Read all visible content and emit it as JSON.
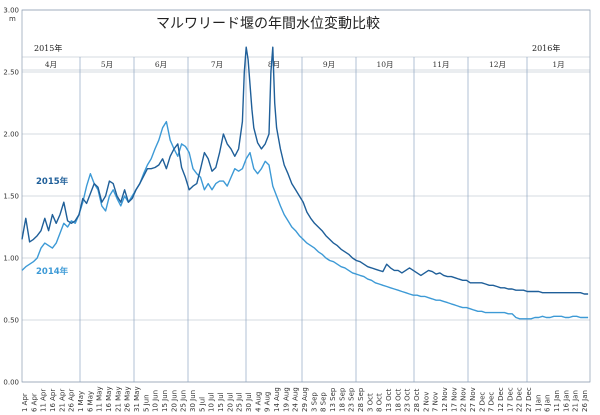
{
  "chart_data": {
    "type": "line",
    "title": "マルワリード堰の年間水位変動比較",
    "ylabel": "m",
    "ylim": [
      0,
      3.0
    ],
    "yticks": [
      "0.00",
      "0.50",
      "1.00",
      "1.50",
      "2.00",
      "2.50",
      "3.00"
    ],
    "grid": true,
    "year_labels": {
      "left": "2015年",
      "right": "2016年"
    },
    "months": [
      "4月",
      "5月",
      "6月",
      "7月",
      "8月",
      "9月",
      "10月",
      "11月",
      "12月",
      "1月"
    ],
    "x_ticks": [
      "1 Apr",
      "6 Apr",
      "11 Apr",
      "16 Apr",
      "21 Apr",
      "26 Apr",
      "1 May",
      "6 May",
      "11 May",
      "16 May",
      "21 May",
      "26 May",
      "31 May",
      "5 Jun",
      "10 Jun",
      "15 Jun",
      "20 Jun",
      "25 Jun",
      "30 Jun",
      "5 Jul",
      "10 Jul",
      "15 Jul",
      "20 Jul",
      "25 Jul",
      "30 Jul",
      "4 Aug",
      "9 Aug",
      "14 Aug",
      "19 Aug",
      "24 Aug",
      "29 Aug",
      "3 Sep",
      "8 Sep",
      "13 Sep",
      "18 Sep",
      "23 Sep",
      "28 Sep",
      "3 Oct",
      "8 Oct",
      "13 Oct",
      "18 Oct",
      "23 Oct",
      "28 Oct",
      "2 Nov",
      "7 Nov",
      "12 Nov",
      "17 Nov",
      "22 Nov",
      "27 Nov",
      "2 Dec",
      "7 Dec",
      "12 Dec",
      "17 Dec",
      "22 Dec",
      "27 Dec",
      "1 Jan",
      "6 Jan",
      "11 Jan",
      "16 Jan",
      "21 Jan",
      "26 Jan"
    ],
    "series": [
      {
        "name": "2015年",
        "color": "#1f5f99",
        "points": [
          [
            0,
            1.15
          ],
          [
            2,
            1.32
          ],
          [
            4,
            1.13
          ],
          [
            6,
            1.15
          ],
          [
            8,
            1.18
          ],
          [
            10,
            1.22
          ],
          [
            12,
            1.32
          ],
          [
            14,
            1.22
          ],
          [
            16,
            1.35
          ],
          [
            18,
            1.28
          ],
          [
            20,
            1.35
          ],
          [
            22,
            1.45
          ],
          [
            24,
            1.3
          ],
          [
            26,
            1.28
          ],
          [
            28,
            1.3
          ],
          [
            30,
            1.35
          ],
          [
            32,
            1.48
          ],
          [
            34,
            1.44
          ],
          [
            36,
            1.52
          ],
          [
            38,
            1.6
          ],
          [
            40,
            1.57
          ],
          [
            42,
            1.45
          ],
          [
            44,
            1.5
          ],
          [
            46,
            1.62
          ],
          [
            48,
            1.6
          ],
          [
            50,
            1.5
          ],
          [
            52,
            1.45
          ],
          [
            54,
            1.55
          ],
          [
            56,
            1.45
          ],
          [
            58,
            1.48
          ],
          [
            60,
            1.55
          ],
          [
            62,
            1.6
          ],
          [
            64,
            1.66
          ],
          [
            66,
            1.72
          ],
          [
            68,
            1.72
          ],
          [
            70,
            1.73
          ],
          [
            72,
            1.75
          ],
          [
            74,
            1.8
          ],
          [
            76,
            1.72
          ],
          [
            78,
            1.82
          ],
          [
            80,
            1.88
          ],
          [
            82,
            1.92
          ],
          [
            84,
            1.73
          ],
          [
            86,
            1.65
          ],
          [
            88,
            1.55
          ],
          [
            90,
            1.58
          ],
          [
            92,
            1.6
          ],
          [
            94,
            1.72
          ],
          [
            96,
            1.85
          ],
          [
            98,
            1.8
          ],
          [
            100,
            1.7
          ],
          [
            102,
            1.73
          ],
          [
            104,
            1.85
          ],
          [
            106,
            2.0
          ],
          [
            108,
            1.92
          ],
          [
            110,
            1.88
          ],
          [
            112,
            1.82
          ],
          [
            114,
            1.88
          ],
          [
            116,
            2.1
          ],
          [
            117,
            2.5
          ],
          [
            118,
            2.7
          ],
          [
            119,
            2.6
          ],
          [
            120,
            2.4
          ],
          [
            121,
            2.2
          ],
          [
            122,
            2.05
          ],
          [
            124,
            1.93
          ],
          [
            126,
            1.88
          ],
          [
            128,
            1.92
          ],
          [
            130,
            2.0
          ],
          [
            131,
            2.5
          ],
          [
            132,
            2.7
          ],
          [
            133,
            2.25
          ],
          [
            134,
            2.05
          ],
          [
            136,
            1.88
          ],
          [
            138,
            1.75
          ],
          [
            140,
            1.68
          ],
          [
            142,
            1.6
          ],
          [
            144,
            1.55
          ],
          [
            146,
            1.5
          ],
          [
            148,
            1.45
          ],
          [
            150,
            1.37
          ],
          [
            152,
            1.32
          ],
          [
            154,
            1.28
          ],
          [
            156,
            1.25
          ],
          [
            158,
            1.22
          ],
          [
            160,
            1.18
          ],
          [
            162,
            1.15
          ],
          [
            164,
            1.12
          ],
          [
            166,
            1.1
          ],
          [
            168,
            1.07
          ],
          [
            170,
            1.05
          ],
          [
            172,
            1.03
          ],
          [
            174,
            1.0
          ],
          [
            176,
            0.98
          ],
          [
            178,
            0.97
          ],
          [
            180,
            0.95
          ],
          [
            182,
            0.93
          ],
          [
            184,
            0.92
          ],
          [
            186,
            0.91
          ],
          [
            188,
            0.9
          ],
          [
            190,
            0.89
          ],
          [
            192,
            0.95
          ],
          [
            194,
            0.92
          ],
          [
            196,
            0.9
          ],
          [
            198,
            0.9
          ],
          [
            200,
            0.88
          ],
          [
            202,
            0.9
          ],
          [
            204,
            0.92
          ],
          [
            206,
            0.9
          ],
          [
            208,
            0.88
          ],
          [
            210,
            0.86
          ],
          [
            212,
            0.88
          ],
          [
            214,
            0.9
          ],
          [
            216,
            0.89
          ],
          [
            218,
            0.87
          ],
          [
            220,
            0.88
          ],
          [
            222,
            0.86
          ],
          [
            224,
            0.85
          ],
          [
            226,
            0.85
          ],
          [
            228,
            0.84
          ],
          [
            230,
            0.83
          ],
          [
            232,
            0.82
          ],
          [
            234,
            0.82
          ],
          [
            236,
            0.8
          ],
          [
            238,
            0.8
          ],
          [
            240,
            0.8
          ],
          [
            242,
            0.8
          ],
          [
            244,
            0.79
          ],
          [
            246,
            0.78
          ],
          [
            248,
            0.78
          ],
          [
            250,
            0.77
          ],
          [
            252,
            0.76
          ],
          [
            254,
            0.76
          ],
          [
            256,
            0.75
          ],
          [
            258,
            0.75
          ],
          [
            260,
            0.74
          ],
          [
            262,
            0.74
          ],
          [
            264,
            0.74
          ],
          [
            266,
            0.73
          ],
          [
            268,
            0.73
          ],
          [
            270,
            0.73
          ],
          [
            272,
            0.73
          ],
          [
            274,
            0.72
          ],
          [
            276,
            0.72
          ],
          [
            278,
            0.72
          ],
          [
            280,
            0.72
          ],
          [
            282,
            0.72
          ],
          [
            284,
            0.72
          ],
          [
            286,
            0.72
          ],
          [
            288,
            0.72
          ],
          [
            290,
            0.72
          ],
          [
            292,
            0.72
          ],
          [
            294,
            0.72
          ],
          [
            296,
            0.71
          ],
          [
            298,
            0.71
          ]
        ]
      },
      {
        "name": "2014年",
        "color": "#3d9ad6",
        "points": [
          [
            0,
            0.9
          ],
          [
            2,
            0.93
          ],
          [
            4,
            0.95
          ],
          [
            6,
            0.97
          ],
          [
            8,
            1.0
          ],
          [
            10,
            1.08
          ],
          [
            12,
            1.12
          ],
          [
            14,
            1.1
          ],
          [
            16,
            1.08
          ],
          [
            18,
            1.12
          ],
          [
            20,
            1.2
          ],
          [
            22,
            1.28
          ],
          [
            24,
            1.25
          ],
          [
            26,
            1.3
          ],
          [
            28,
            1.28
          ],
          [
            30,
            1.35
          ],
          [
            32,
            1.45
          ],
          [
            34,
            1.58
          ],
          [
            36,
            1.68
          ],
          [
            38,
            1.6
          ],
          [
            40,
            1.55
          ],
          [
            42,
            1.42
          ],
          [
            44,
            1.38
          ],
          [
            46,
            1.5
          ],
          [
            48,
            1.55
          ],
          [
            50,
            1.48
          ],
          [
            52,
            1.42
          ],
          [
            54,
            1.5
          ],
          [
            56,
            1.45
          ],
          [
            58,
            1.5
          ],
          [
            60,
            1.55
          ],
          [
            62,
            1.6
          ],
          [
            64,
            1.68
          ],
          [
            66,
            1.75
          ],
          [
            68,
            1.8
          ],
          [
            70,
            1.88
          ],
          [
            72,
            1.95
          ],
          [
            74,
            2.05
          ],
          [
            76,
            2.1
          ],
          [
            78,
            1.95
          ],
          [
            80,
            1.88
          ],
          [
            82,
            1.82
          ],
          [
            84,
            1.92
          ],
          [
            86,
            1.9
          ],
          [
            88,
            1.85
          ],
          [
            90,
            1.72
          ],
          [
            92,
            1.68
          ],
          [
            94,
            1.65
          ],
          [
            96,
            1.55
          ],
          [
            98,
            1.6
          ],
          [
            100,
            1.55
          ],
          [
            102,
            1.6
          ],
          [
            104,
            1.62
          ],
          [
            106,
            1.62
          ],
          [
            108,
            1.58
          ],
          [
            110,
            1.65
          ],
          [
            112,
            1.72
          ],
          [
            114,
            1.7
          ],
          [
            116,
            1.72
          ],
          [
            118,
            1.8
          ],
          [
            120,
            1.85
          ],
          [
            122,
            1.72
          ],
          [
            124,
            1.68
          ],
          [
            126,
            1.72
          ],
          [
            128,
            1.78
          ],
          [
            130,
            1.75
          ],
          [
            132,
            1.58
          ],
          [
            134,
            1.5
          ],
          [
            136,
            1.42
          ],
          [
            138,
            1.35
          ],
          [
            140,
            1.3
          ],
          [
            142,
            1.25
          ],
          [
            144,
            1.22
          ],
          [
            146,
            1.18
          ],
          [
            148,
            1.15
          ],
          [
            150,
            1.12
          ],
          [
            152,
            1.1
          ],
          [
            154,
            1.08
          ],
          [
            156,
            1.05
          ],
          [
            158,
            1.03
          ],
          [
            160,
            1.0
          ],
          [
            162,
            0.98
          ],
          [
            164,
            0.97
          ],
          [
            166,
            0.95
          ],
          [
            168,
            0.93
          ],
          [
            170,
            0.92
          ],
          [
            172,
            0.9
          ],
          [
            174,
            0.88
          ],
          [
            176,
            0.87
          ],
          [
            178,
            0.86
          ],
          [
            180,
            0.85
          ],
          [
            182,
            0.83
          ],
          [
            184,
            0.82
          ],
          [
            186,
            0.8
          ],
          [
            188,
            0.79
          ],
          [
            190,
            0.78
          ],
          [
            192,
            0.77
          ],
          [
            194,
            0.76
          ],
          [
            196,
            0.75
          ],
          [
            198,
            0.74
          ],
          [
            200,
            0.73
          ],
          [
            202,
            0.72
          ],
          [
            204,
            0.71
          ],
          [
            206,
            0.7
          ],
          [
            208,
            0.7
          ],
          [
            210,
            0.69
          ],
          [
            212,
            0.69
          ],
          [
            214,
            0.68
          ],
          [
            216,
            0.67
          ],
          [
            218,
            0.66
          ],
          [
            220,
            0.66
          ],
          [
            222,
            0.65
          ],
          [
            224,
            0.64
          ],
          [
            226,
            0.63
          ],
          [
            228,
            0.62
          ],
          [
            230,
            0.61
          ],
          [
            232,
            0.6
          ],
          [
            234,
            0.6
          ],
          [
            236,
            0.59
          ],
          [
            238,
            0.58
          ],
          [
            240,
            0.57
          ],
          [
            242,
            0.57
          ],
          [
            244,
            0.56
          ],
          [
            246,
            0.56
          ],
          [
            248,
            0.56
          ],
          [
            250,
            0.56
          ],
          [
            252,
            0.56
          ],
          [
            254,
            0.56
          ],
          [
            256,
            0.55
          ],
          [
            258,
            0.55
          ],
          [
            260,
            0.52
          ],
          [
            262,
            0.51
          ],
          [
            264,
            0.51
          ],
          [
            266,
            0.51
          ],
          [
            268,
            0.51
          ],
          [
            270,
            0.52
          ],
          [
            272,
            0.52
          ],
          [
            274,
            0.53
          ],
          [
            276,
            0.52
          ],
          [
            278,
            0.52
          ],
          [
            280,
            0.53
          ],
          [
            282,
            0.53
          ],
          [
            284,
            0.53
          ],
          [
            286,
            0.52
          ],
          [
            288,
            0.52
          ],
          [
            290,
            0.53
          ],
          [
            292,
            0.53
          ],
          [
            294,
            0.52
          ],
          [
            296,
            0.52
          ],
          [
            298,
            0.52
          ]
        ]
      }
    ]
  }
}
